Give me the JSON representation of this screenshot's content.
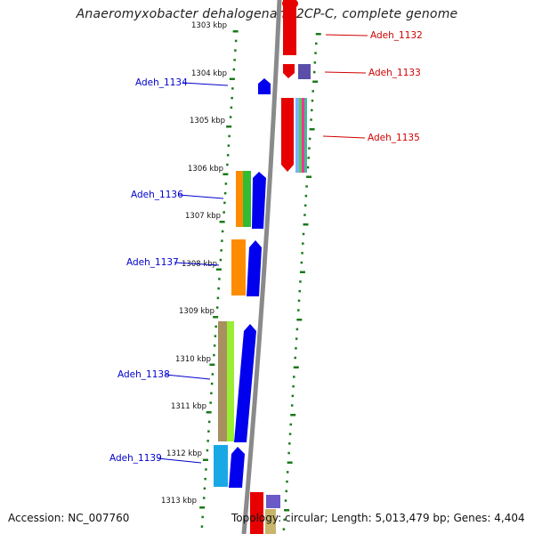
{
  "title": "Anaeromyxobacter dehalogenans 2CP-C, complete genome",
  "footer": {
    "accession": "Accession: NC_007760",
    "summary": "Topology: circular; Length: 5,013,479 bp; Genes: 4,404"
  },
  "colors": {
    "forward_label": "#d00000",
    "reverse_label": "#0000cc",
    "backbone": "#888888",
    "tick": "#1a7a1a"
  },
  "kbp_labels": [
    "1303 kbp",
    "1304 kbp",
    "1305 kbp",
    "1306 kbp",
    "1307 kbp",
    "1308 kbp",
    "1309 kbp",
    "1310 kbp",
    "1311 kbp",
    "1312 kbp",
    "1313 kbp"
  ],
  "gene_labels": {
    "forward": [
      "Adeh_1132",
      "Adeh_1133",
      "Adeh_1135"
    ],
    "reverse": [
      "Adeh_1134",
      "Adeh_1136",
      "Adeh_1137",
      "Adeh_1138",
      "Adeh_1139"
    ]
  }
}
